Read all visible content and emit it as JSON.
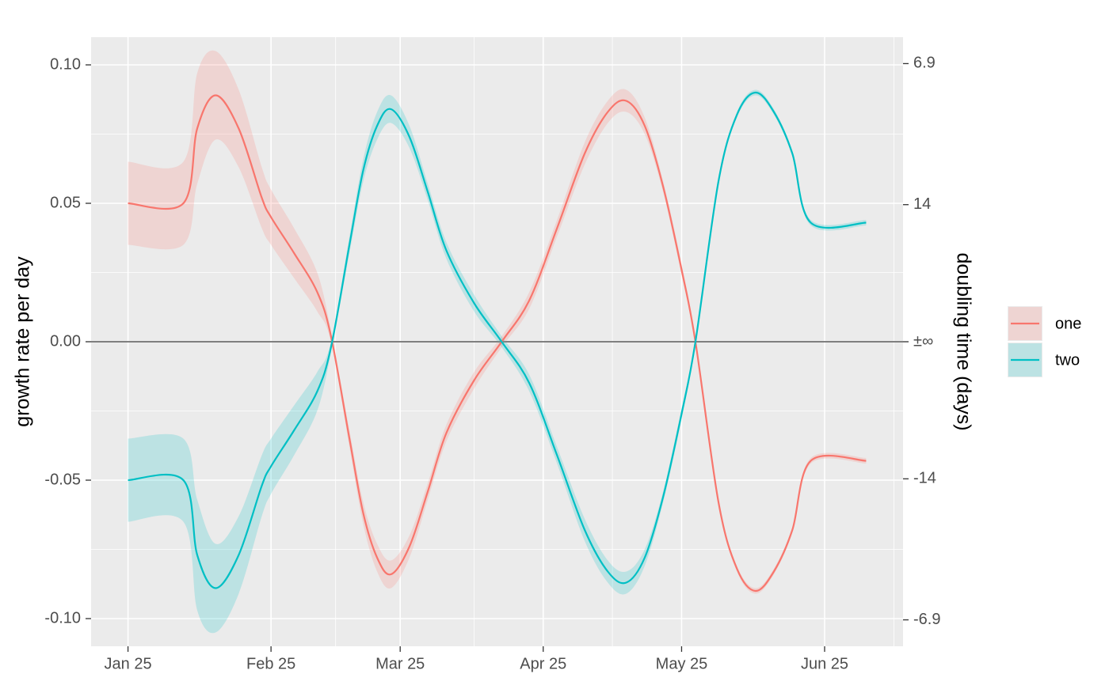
{
  "chart_data": {
    "type": "line",
    "ylabel": "growth rate per day",
    "y2label": "doubling time (days)",
    "x": [
      "Jan 25",
      "Feb 6",
      "Feb 9",
      "Feb 13",
      "Feb 18",
      "Feb 23",
      "Feb 25",
      "Mar 2",
      "Mar 7",
      "Mar 10",
      "Mar 14",
      "Mar 17",
      "Mar 20",
      "Mar 23",
      "Mar 27",
      "Mar 31",
      "Apr 4",
      "Apr 10",
      "Apr 16",
      "Apr 22",
      "Apr 28",
      "May 4",
      "May 9",
      "May 13",
      "May 17",
      "May 21",
      "May 25",
      "May 28",
      "Jun 2",
      "Jun 6",
      "Jun 10",
      "Jun 14",
      "Jun 18",
      "Jun 22",
      "Jul 4"
    ],
    "series": [
      {
        "name": "one",
        "color": "#F8766D",
        "values": [
          0.05,
          0.05,
          0.077,
          0.089,
          0.077,
          0.052,
          0.045,
          0.032,
          0.018,
          0.002,
          -0.035,
          -0.062,
          -0.078,
          -0.084,
          -0.074,
          -0.054,
          -0.033,
          -0.014,
          0,
          0.015,
          0.041,
          0.068,
          0.083,
          0.087,
          0.078,
          0.056,
          0.026,
          0,
          -0.058,
          -0.082,
          -0.09,
          -0.083,
          -0.068,
          -0.043,
          -0.043
        ],
        "lower": [
          0.035,
          0.035,
          0.057,
          0.073,
          0.063,
          0.041,
          0.035,
          0.023,
          0.011,
          0,
          -0.038,
          -0.066,
          -0.083,
          -0.089,
          -0.078,
          -0.057,
          -0.036,
          -0.017,
          -0.002,
          0.012,
          0.038,
          0.064,
          0.079,
          0.083,
          0.075,
          0.054,
          0.024,
          -0.001,
          -0.059,
          -0.083,
          -0.091,
          -0.084,
          -0.069,
          -0.044,
          -0.044
        ],
        "upper": [
          0.065,
          0.065,
          0.097,
          0.105,
          0.091,
          0.063,
          0.055,
          0.041,
          0.025,
          0.004,
          -0.032,
          -0.058,
          -0.073,
          -0.079,
          -0.07,
          -0.051,
          -0.03,
          -0.011,
          0.002,
          0.018,
          0.044,
          0.072,
          0.087,
          0.091,
          0.081,
          0.058,
          0.028,
          0.001,
          -0.057,
          -0.081,
          -0.089,
          -0.082,
          -0.067,
          -0.042,
          -0.042
        ]
      },
      {
        "name": "two",
        "color": "#00BFC4",
        "values": [
          -0.05,
          -0.05,
          -0.077,
          -0.089,
          -0.077,
          -0.052,
          -0.045,
          -0.032,
          -0.018,
          -0.002,
          0.035,
          0.062,
          0.078,
          0.084,
          0.074,
          0.054,
          0.033,
          0.014,
          0,
          -0.015,
          -0.041,
          -0.068,
          -0.083,
          -0.087,
          -0.078,
          -0.056,
          -0.026,
          0,
          0.058,
          0.082,
          0.09,
          0.083,
          0.068,
          0.043,
          0.043
        ],
        "lower": [
          -0.065,
          -0.065,
          -0.097,
          -0.105,
          -0.091,
          -0.063,
          -0.055,
          -0.041,
          -0.025,
          -0.004,
          0.032,
          0.058,
          0.073,
          0.079,
          0.07,
          0.051,
          0.03,
          0.011,
          -0.002,
          -0.018,
          -0.044,
          -0.072,
          -0.087,
          -0.091,
          -0.081,
          -0.058,
          -0.028,
          -0.001,
          0.057,
          0.081,
          0.089,
          0.082,
          0.067,
          0.042,
          0.042
        ],
        "upper": [
          -0.035,
          -0.035,
          -0.057,
          -0.073,
          -0.063,
          -0.041,
          -0.035,
          -0.023,
          -0.011,
          0,
          0.038,
          0.066,
          0.083,
          0.089,
          0.078,
          0.057,
          0.036,
          0.017,
          0.002,
          -0.012,
          -0.038,
          -0.064,
          -0.079,
          -0.083,
          -0.075,
          -0.054,
          -0.024,
          0.001,
          0.059,
          0.083,
          0.091,
          0.084,
          0.069,
          0.044,
          0.044
        ]
      }
    ],
    "xlim": [
      "Jan 17",
      "Jul 12"
    ],
    "xticks": [
      "Jan 25",
      "Feb 25",
      "Mar 25",
      "Apr 25",
      "May 25",
      "Jun 25"
    ],
    "xminor": [
      "Mar 11",
      "Apr 10",
      "May 10",
      "Jul 10"
    ],
    "ylim": [
      -0.11,
      0.11
    ],
    "yticks": [
      {
        "value": 0.1,
        "label": "0.10"
      },
      {
        "value": 0.05,
        "label": "0.05"
      },
      {
        "value": 0,
        "label": "0.00"
      },
      {
        "value": -0.05,
        "label": "-0.05"
      },
      {
        "value": -0.1,
        "label": "-0.10"
      }
    ],
    "yminor": [
      0.075,
      0.025,
      -0.025,
      -0.075
    ],
    "y2ticks": [
      6.9,
      14,
      {
        "value": null,
        "label": "±∞"
      },
      -14,
      -6.9
    ],
    "grid": true,
    "legend": "right"
  }
}
